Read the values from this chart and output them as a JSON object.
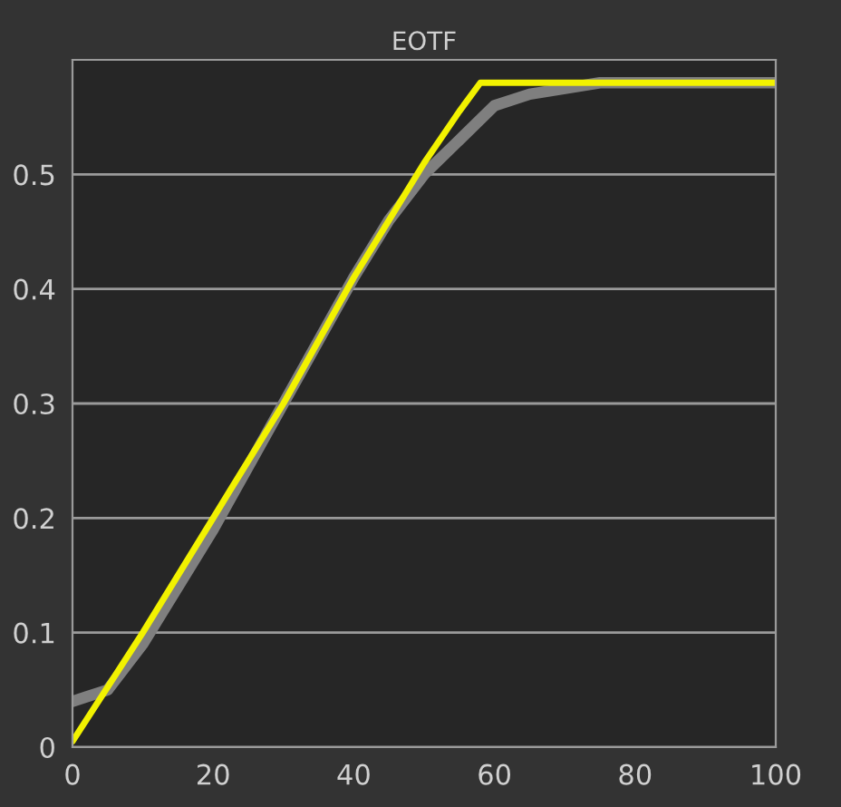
{
  "chart_data": {
    "type": "line",
    "title": "EOTF",
    "xlim": [
      0,
      100
    ],
    "xticks": [
      0,
      20,
      40,
      60,
      80,
      100
    ],
    "ylim": [
      0,
      0.6
    ],
    "yticks": [
      0,
      0.1,
      0.2,
      0.3,
      0.4,
      0.5
    ],
    "grid": "y",
    "legend": false,
    "series": [
      {
        "color": "#7f7f7f",
        "x": [
          0,
          5,
          10,
          20,
          30,
          40,
          45,
          50,
          55,
          60,
          65,
          70,
          75,
          100
        ],
        "values": [
          0.04,
          0.05,
          0.09,
          0.19,
          0.3,
          0.41,
          0.46,
          0.5,
          0.53,
          0.56,
          0.57,
          0.575,
          0.58,
          0.58
        ]
      },
      {
        "color": "#f2f200",
        "x": [
          0,
          10,
          20,
          30,
          40,
          50,
          55,
          58,
          100
        ],
        "values": [
          0.005,
          0.1,
          0.2,
          0.3,
          0.41,
          0.51,
          0.555,
          0.58,
          0.58
        ]
      }
    ]
  }
}
